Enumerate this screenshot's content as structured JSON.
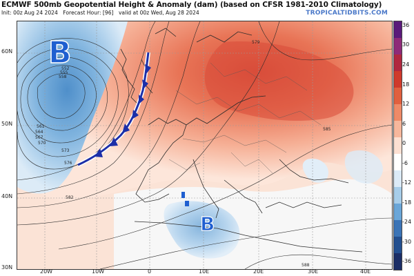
{
  "header": {
    "title": "ECMWF 500mb Geopotential Height & Anomaly (dam) (based on CFSR 1981-2010 Climatology)",
    "init": "Init: 00z Aug 24 2024",
    "forecast_hour": "Forecast Hour: [96]",
    "valid": "valid at 00z Wed, Aug 28 2024",
    "watermark": "TROPICALTIDBITS.COM"
  },
  "axes": {
    "lat_labels": [
      "60N",
      "50N",
      "40N",
      "30N"
    ],
    "lon_labels": [
      "20W",
      "10W",
      "0",
      "10E",
      "20E",
      "30E",
      "40E"
    ]
  },
  "colorbar": {
    "ticks": [
      "36",
      "30",
      "24",
      "18",
      "12",
      "6",
      "0",
      "-6",
      "-12",
      "-18",
      "-24",
      "-30",
      "-36"
    ],
    "colors": [
      "#5a1a7a",
      "#8e2a78",
      "#b0273f",
      "#cf3a2c",
      "#e0603f",
      "#ee8a67",
      "#f7b79c",
      "#fde0d2",
      "#ffffff",
      "#dcebf7",
      "#a7cde9",
      "#6aa6d8",
      "#3b74b6",
      "#234f8f",
      "#1b2e66"
    ]
  },
  "map": {
    "lows": [
      {
        "letter": "B",
        "label": "low-pressure-atlantic"
      },
      {
        "letter": "B",
        "label": "low-pressure-mediterranean"
      }
    ],
    "contour_labels": [
      "573",
      "576",
      "582",
      "585",
      "588",
      "570",
      "567",
      "564",
      "561",
      "558",
      "555",
      "552",
      "579"
    ]
  }
}
